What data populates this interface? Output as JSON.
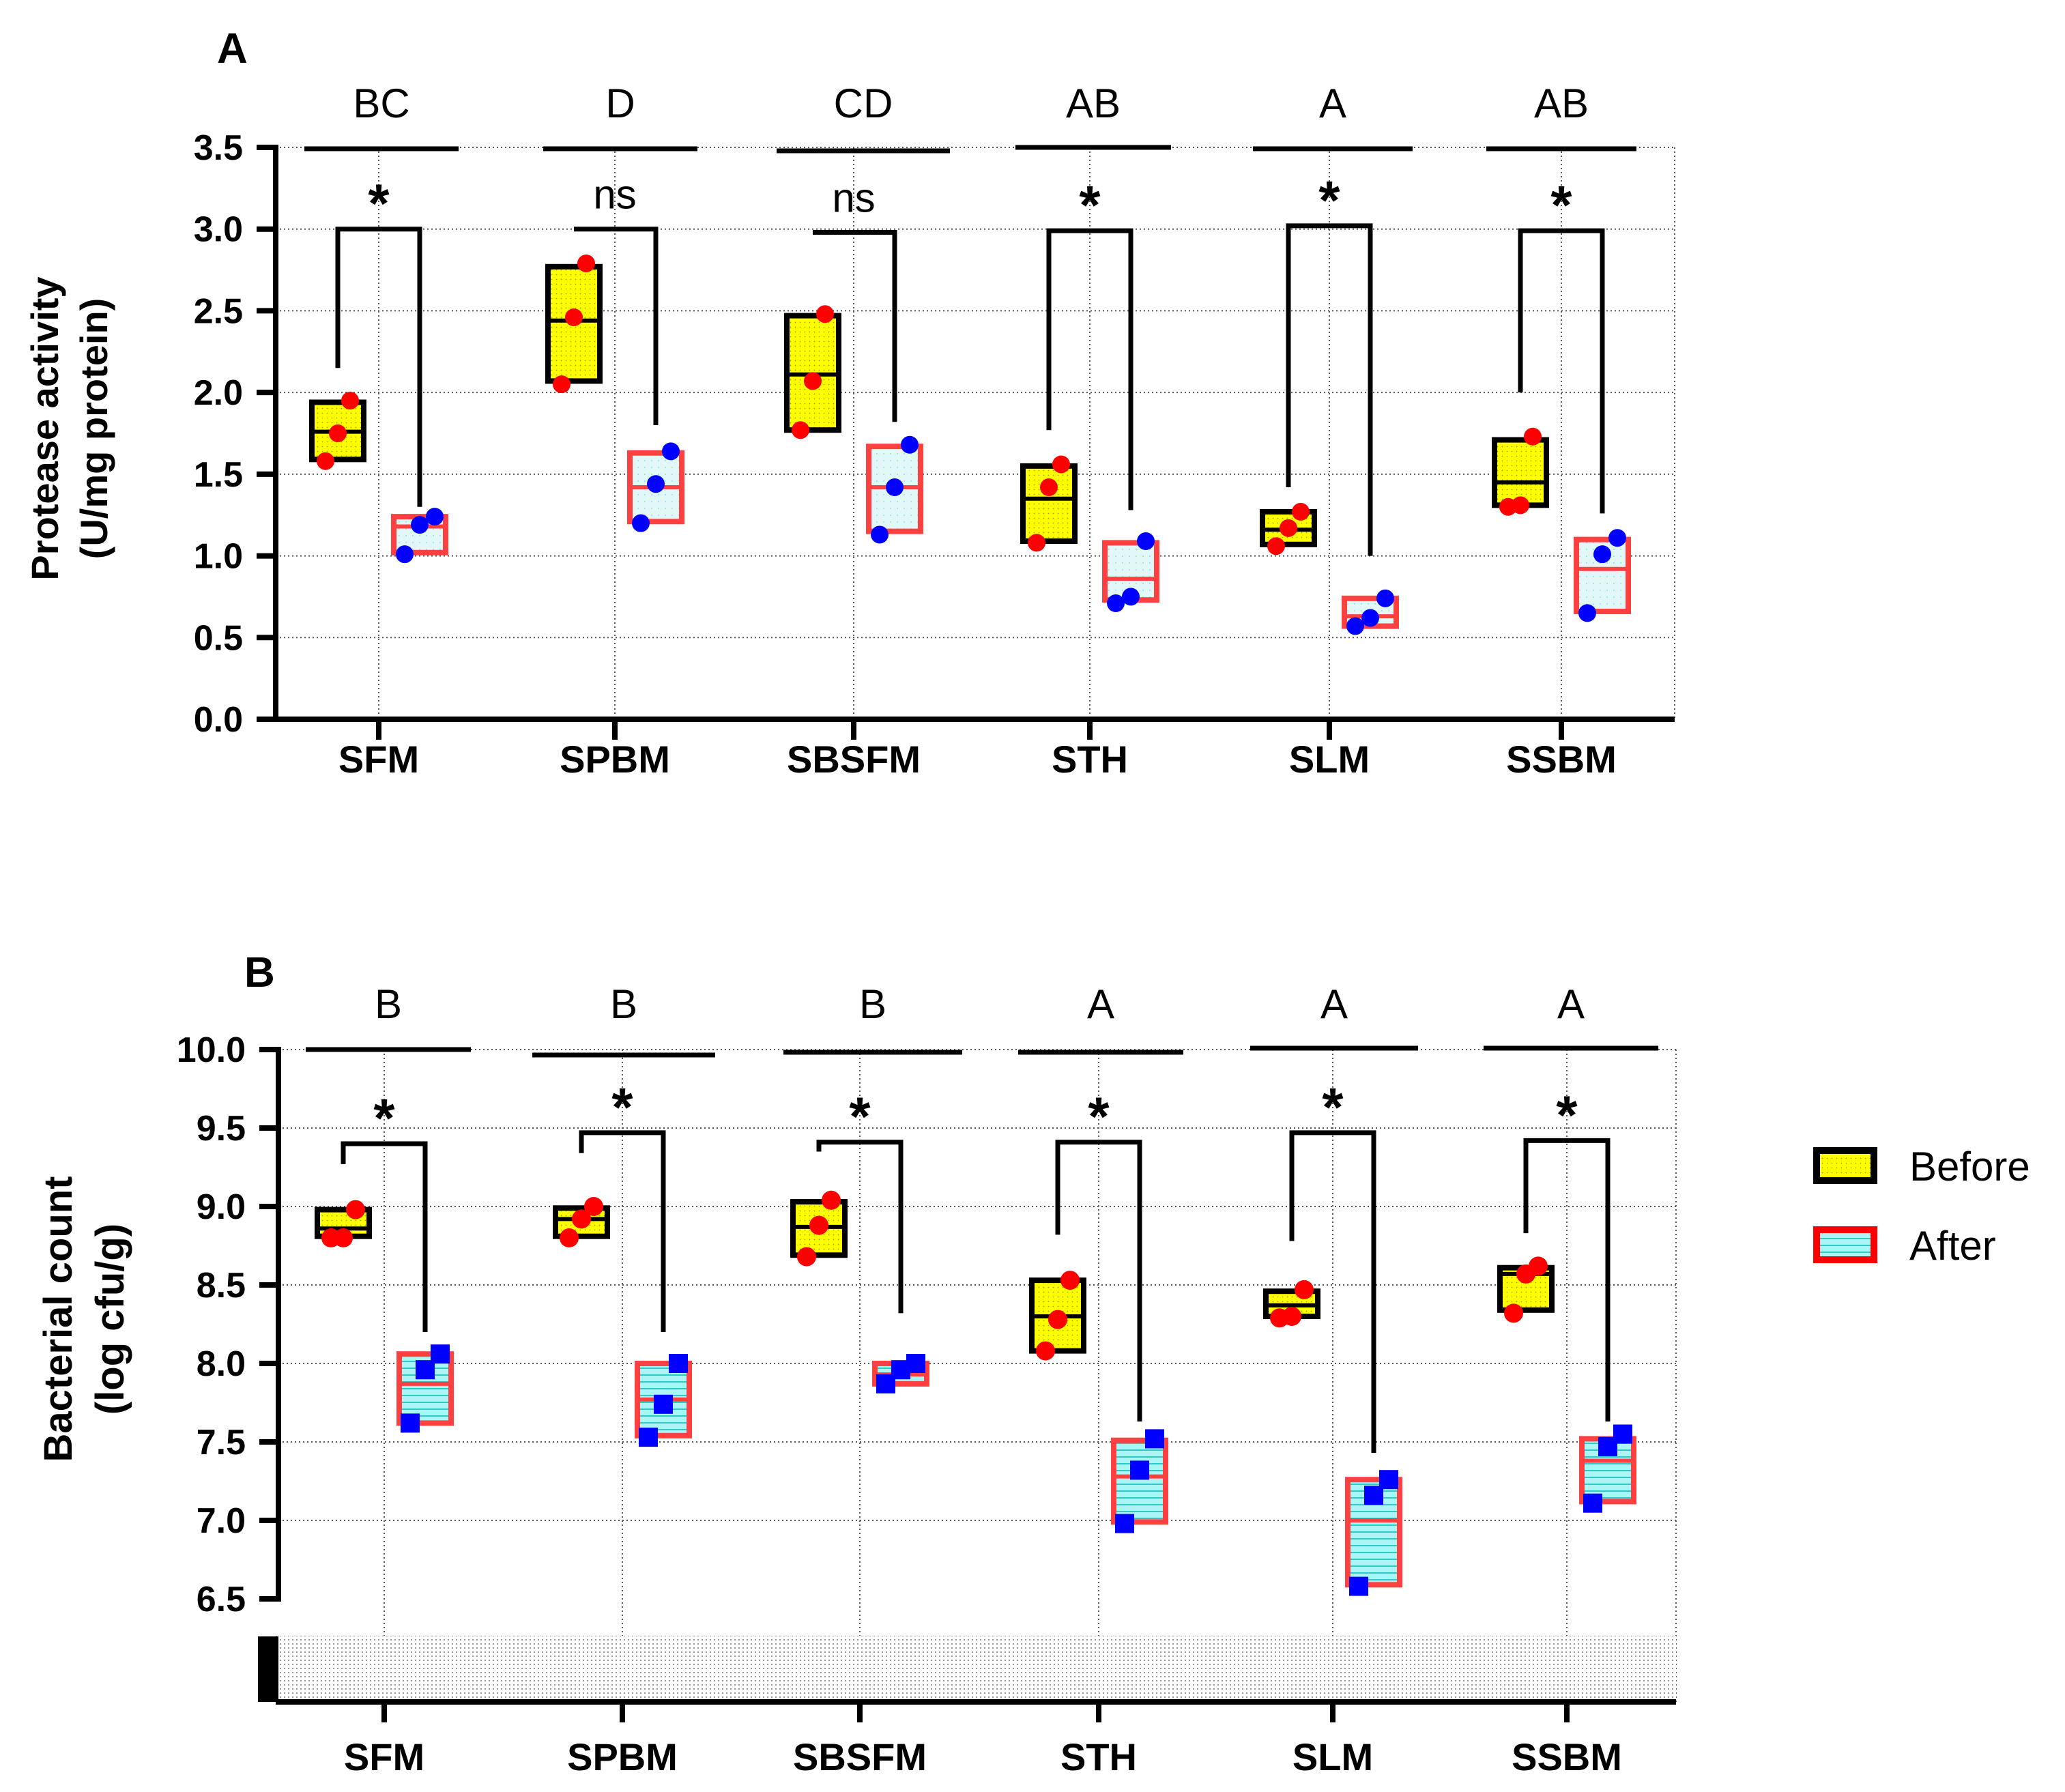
{
  "legend": {
    "items": [
      {
        "label": "Before",
        "fill": "#ffff00",
        "stroke": "#000000",
        "pattern": "dots"
      },
      {
        "label": "After",
        "fill": "#aaf5f5",
        "stroke": "#ff0000",
        "pattern": "lines"
      }
    ]
  },
  "colors": {
    "before_fill": "#ffff00",
    "before_stroke": "#000000",
    "before_point": "#ff0000",
    "after_fill_a": "#dff6f6",
    "after_fill_b": "#aaf5f5",
    "after_stroke": "#ff4040",
    "after_point": "#0000ff"
  },
  "chart_data": [
    {
      "panel": "A",
      "type": "box",
      "ylabel": "Protease activity (U/mg protein)",
      "ylabel_lines": [
        "Protease activity",
        "(U/mg protein)"
      ],
      "ylim": [
        0,
        3.5
      ],
      "yticks": [
        "0.0",
        "0.5",
        "1.0",
        "1.5",
        "2.0",
        "2.5",
        "3.0",
        "3.5"
      ],
      "ytick_values": [
        0,
        0.5,
        1.0,
        1.5,
        2.0,
        2.5,
        3.0,
        3.5
      ],
      "categories": [
        "SFM",
        "SPBM",
        "SBSFM",
        "STH",
        "SLM",
        "SSBM"
      ],
      "group_letters": [
        "BC",
        "D",
        "CD",
        "AB",
        "A",
        "AB"
      ],
      "significance": [
        "*",
        "ns",
        "ns",
        "*",
        "*",
        "*"
      ],
      "series": [
        {
          "name": "Before",
          "points": [
            [
              1.58,
              1.75,
              1.95
            ],
            [
              2.05,
              2.46,
              2.79
            ],
            [
              1.77,
              2.07,
              2.48
            ],
            [
              1.08,
              1.42,
              1.56
            ],
            [
              1.06,
              1.17,
              1.27
            ],
            [
              1.3,
              1.31,
              1.73
            ]
          ],
          "boxes": [
            [
              1.59,
              1.76,
              1.94
            ],
            [
              2.07,
              2.44,
              2.77
            ],
            [
              1.77,
              2.11,
              2.47
            ],
            [
              1.09,
              1.35,
              1.55
            ],
            [
              1.07,
              1.16,
              1.27
            ],
            [
              1.31,
              1.45,
              1.71
            ]
          ]
        },
        {
          "name": "After",
          "points": [
            [
              1.01,
              1.19,
              1.24
            ],
            [
              1.2,
              1.44,
              1.64
            ],
            [
              1.13,
              1.42,
              1.68
            ],
            [
              0.71,
              0.75,
              1.09
            ],
            [
              0.57,
              0.62,
              0.74
            ],
            [
              0.65,
              1.01,
              1.11
            ]
          ],
          "boxes": [
            [
              1.02,
              1.18,
              1.24
            ],
            [
              1.21,
              1.42,
              1.63
            ],
            [
              1.15,
              1.42,
              1.67
            ],
            [
              0.73,
              0.86,
              1.08
            ],
            [
              0.57,
              0.63,
              0.74
            ],
            [
              0.66,
              0.92,
              1.1
            ]
          ]
        }
      ],
      "brackets": [
        [
          2.15,
          3.0,
          1.3
        ],
        [
          3.0,
          3.0,
          1.8
        ],
        [
          2.98,
          2.98,
          1.82
        ],
        [
          1.77,
          2.99,
          1.28
        ],
        [
          1.42,
          3.02,
          1.0
        ],
        [
          2.0,
          2.99,
          1.26
        ]
      ]
    },
    {
      "panel": "B",
      "type": "box",
      "ylabel": "Bacterial count (log cfu/g)",
      "ylabel_lines": [
        "Bacterial count",
        "(log cfu/g)"
      ],
      "ylim": [
        6.5,
        10.0
      ],
      "yticks": [
        "6.5",
        "7.0",
        "7.5",
        "8.0",
        "8.5",
        "9.0",
        "9.5",
        "10.0"
      ],
      "ytick_values": [
        6.5,
        7.0,
        7.5,
        8.0,
        8.5,
        9.0,
        9.5,
        10.0
      ],
      "axis_break": true,
      "categories": [
        "SFM",
        "SPBM",
        "SBSFM",
        "STH",
        "SLM",
        "SSBM"
      ],
      "group_letters": [
        "B",
        "B",
        "B",
        "A",
        "A",
        "A"
      ],
      "significance": [
        "*",
        "*",
        "*",
        "*",
        "*",
        "*"
      ],
      "series": [
        {
          "name": "Before",
          "points": [
            [
              8.8,
              8.8,
              8.98
            ],
            [
              8.8,
              8.92,
              9.0
            ],
            [
              8.68,
              8.88,
              9.04
            ],
            [
              8.08,
              8.28,
              8.53
            ],
            [
              8.29,
              8.3,
              8.47
            ],
            [
              8.32,
              8.57,
              8.62
            ]
          ],
          "boxes": [
            [
              8.81,
              8.86,
              8.98
            ],
            [
              8.81,
              8.92,
              8.99
            ],
            [
              8.69,
              8.87,
              9.03
            ],
            [
              8.08,
              8.3,
              8.53
            ],
            [
              8.3,
              8.37,
              8.46
            ],
            [
              8.34,
              8.57,
              8.61
            ]
          ]
        },
        {
          "name": "After",
          "points": [
            [
              7.62,
              7.96,
              8.06
            ],
            [
              7.53,
              7.74,
              8.0
            ],
            [
              7.87,
              7.96,
              8.0
            ],
            [
              6.98,
              7.32,
              7.52
            ],
            [
              6.58,
              7.16,
              7.26
            ],
            [
              7.11,
              7.47,
              7.55
            ]
          ],
          "boxes": [
            [
              7.62,
              7.87,
              8.06
            ],
            [
              7.54,
              7.77,
              8.0
            ],
            [
              7.87,
              7.93,
              8.0
            ],
            [
              6.99,
              7.28,
              7.51
            ],
            [
              6.59,
              7.0,
              7.26
            ],
            [
              7.12,
              7.38,
              7.52
            ]
          ]
        }
      ],
      "brackets": [
        [
          9.27,
          9.4,
          8.2
        ],
        [
          9.34,
          9.47,
          8.2
        ],
        [
          9.35,
          9.41,
          8.32
        ],
        [
          8.82,
          9.41,
          7.63
        ],
        [
          8.78,
          9.47,
          7.43
        ],
        [
          8.83,
          9.42,
          7.63
        ]
      ]
    }
  ]
}
